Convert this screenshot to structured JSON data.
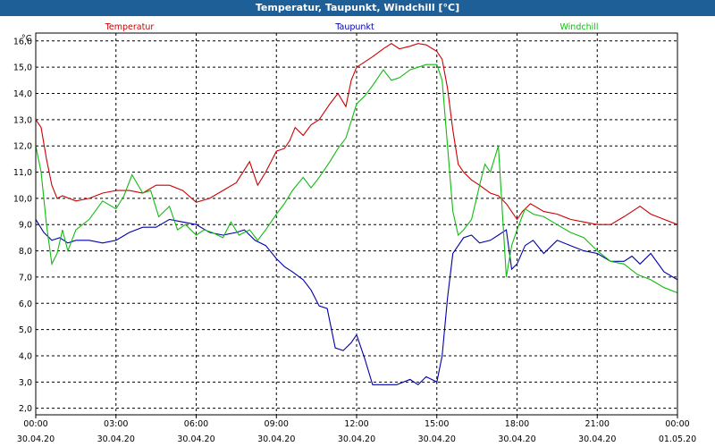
{
  "window": {
    "title": "Temperatur, Taupunkt, Windchill [°C]"
  },
  "chart_data": {
    "type": "line",
    "title": "Temperatur, Taupunkt, Windchill [°C]",
    "ylabel": "°C",
    "ylim": [
      1.75,
      16.3
    ],
    "xlim_hours": [
      0,
      24
    ],
    "grid": true,
    "yticks": [
      "2,0",
      "3,0",
      "4,0",
      "5,0",
      "6,0",
      "7,0",
      "8,0",
      "9,0",
      "10,0",
      "11,0",
      "12,0",
      "13,0",
      "14,0",
      "15,0",
      "16,0"
    ],
    "ytick_values": [
      2,
      3,
      4,
      5,
      6,
      7,
      8,
      9,
      10,
      11,
      12,
      13,
      14,
      15,
      16
    ],
    "xticks": [
      {
        "time": "00:00",
        "date": "30.04.20",
        "h": 0
      },
      {
        "time": "03:00",
        "date": "30.04.20",
        "h": 3
      },
      {
        "time": "06:00",
        "date": "30.04.20",
        "h": 6
      },
      {
        "time": "09:00",
        "date": "30.04.20",
        "h": 9
      },
      {
        "time": "12:00",
        "date": "30.04.20",
        "h": 12
      },
      {
        "time": "15:00",
        "date": "30.04.20",
        "h": 15
      },
      {
        "time": "18:00",
        "date": "30.04.20",
        "h": 18
      },
      {
        "time": "21:00",
        "date": "30.04.20",
        "h": 21
      },
      {
        "time": "00:00",
        "date": "01.05.20",
        "h": 24
      }
    ],
    "colors": {
      "temperatur": "#cc0000",
      "taupunkt": "#0000aa",
      "windchill": "#11bb11",
      "grid": "#000000"
    },
    "series": [
      {
        "name": "Temperatur",
        "key": "temperatur",
        "x": [
          0,
          0.2,
          0.4,
          0.6,
          0.8,
          1,
          1.5,
          2,
          2.5,
          3,
          3.5,
          4,
          4.5,
          5,
          5.5,
          6,
          6.5,
          7,
          7.5,
          8,
          8.3,
          8.6,
          9,
          9.3,
          9.5,
          9.7,
          10,
          10.3,
          10.6,
          11,
          11.3,
          11.6,
          11.8,
          12,
          12.3,
          12.6,
          13,
          13.3,
          13.6,
          14,
          14.3,
          14.6,
          15,
          15.2,
          15.4,
          15.6,
          15.8,
          16,
          16.3,
          16.6,
          17,
          17.3,
          17.6,
          18,
          18.2,
          18.5,
          19,
          19.5,
          20,
          20.5,
          21,
          21.5,
          22,
          22.3,
          22.6,
          23,
          23.5,
          24
        ],
        "values": [
          13.0,
          12.7,
          11.5,
          10.5,
          10.0,
          10.1,
          9.9,
          10.0,
          10.2,
          10.3,
          10.3,
          10.2,
          10.5,
          10.5,
          10.3,
          9.85,
          10.0,
          10.3,
          10.6,
          11.4,
          10.5,
          11.0,
          11.8,
          11.9,
          12.2,
          12.7,
          12.4,
          12.8,
          13.0,
          13.6,
          14.0,
          13.5,
          14.5,
          15.0,
          15.2,
          15.4,
          15.7,
          15.9,
          15.7,
          15.8,
          15.9,
          15.85,
          15.6,
          15.3,
          14.2,
          12.6,
          11.3,
          11.0,
          10.7,
          10.5,
          10.2,
          10.1,
          9.8,
          9.2,
          9.5,
          9.8,
          9.5,
          9.4,
          9.2,
          9.1,
          9.0,
          9.0,
          9.3,
          9.5,
          9.7,
          9.4,
          9.2,
          9.0
        ]
      },
      {
        "name": "Taupunkt",
        "key": "taupunkt",
        "x": [
          0,
          0.3,
          0.6,
          0.9,
          1.2,
          1.5,
          2,
          2.5,
          3,
          3.5,
          4,
          4.5,
          5,
          5.5,
          6,
          6.5,
          7,
          7.5,
          7.8,
          8.2,
          8.6,
          9,
          9.3,
          9.6,
          10,
          10.3,
          10.6,
          10.9,
          11.2,
          11.5,
          11.8,
          12,
          12.3,
          12.6,
          13,
          13.5,
          14,
          14.3,
          14.6,
          15,
          15.2,
          15.4,
          15.6,
          15.8,
          16,
          16.3,
          16.6,
          17,
          17.3,
          17.6,
          17.8,
          18,
          18.3,
          18.6,
          19,
          19.5,
          20,
          20.5,
          21,
          21.5,
          22,
          22.3,
          22.6,
          23,
          23.5,
          24
        ],
        "values": [
          9.2,
          8.7,
          8.4,
          8.5,
          8.3,
          8.4,
          8.4,
          8.3,
          8.4,
          8.7,
          8.9,
          8.9,
          9.2,
          9.1,
          9.0,
          8.7,
          8.6,
          8.7,
          8.8,
          8.4,
          8.2,
          7.7,
          7.4,
          7.2,
          6.9,
          6.5,
          5.9,
          5.8,
          4.3,
          4.2,
          4.5,
          4.8,
          3.9,
          2.9,
          2.9,
          2.9,
          3.1,
          2.9,
          3.2,
          3.0,
          4.0,
          6.2,
          7.9,
          8.2,
          8.5,
          8.6,
          8.3,
          8.4,
          8.6,
          8.8,
          7.3,
          7.5,
          8.2,
          8.4,
          7.9,
          8.4,
          8.2,
          8.0,
          7.9,
          7.6,
          7.6,
          7.8,
          7.5,
          7.9,
          7.2,
          6.9
        ]
      },
      {
        "name": "Windchill",
        "key": "windchill",
        "x": [
          0,
          0.2,
          0.4,
          0.6,
          0.8,
          1,
          1.2,
          1.5,
          2,
          2.5,
          3,
          3.3,
          3.6,
          4,
          4.3,
          4.6,
          5,
          5.3,
          5.6,
          6,
          6.3,
          6.6,
          7,
          7.3,
          7.6,
          8,
          8.3,
          8.6,
          9,
          9.3,
          9.6,
          10,
          10.3,
          10.6,
          11,
          11.3,
          11.6,
          12,
          12.3,
          12.6,
          13,
          13.3,
          13.6,
          14,
          14.3,
          14.6,
          15,
          15.2,
          15.4,
          15.6,
          15.8,
          16,
          16.3,
          16.6,
          16.8,
          17,
          17.3,
          17.6,
          17.8,
          18,
          18.3,
          18.6,
          19,
          19.5,
          20,
          20.5,
          21,
          21.5,
          22,
          22.5,
          23,
          23.5,
          24
        ],
        "values": [
          12.0,
          11.0,
          9.0,
          7.5,
          7.9,
          8.8,
          8.0,
          8.8,
          9.2,
          9.9,
          9.6,
          10.1,
          10.9,
          10.2,
          10.3,
          9.3,
          9.7,
          8.8,
          9.0,
          8.6,
          8.8,
          8.7,
          8.5,
          9.1,
          8.6,
          8.8,
          8.4,
          8.8,
          9.4,
          9.8,
          10.3,
          10.8,
          10.4,
          10.8,
          11.4,
          11.9,
          12.3,
          13.6,
          13.9,
          14.3,
          14.9,
          14.5,
          14.6,
          14.9,
          15.0,
          15.1,
          15.1,
          14.5,
          12.0,
          9.5,
          8.6,
          8.8,
          9.2,
          10.5,
          11.3,
          11.0,
          12.0,
          7.0,
          8.2,
          8.8,
          9.6,
          9.4,
          9.3,
          9.0,
          8.7,
          8.5,
          8.0,
          7.6,
          7.5,
          7.1,
          6.9,
          6.6,
          6.4
        ]
      }
    ]
  }
}
